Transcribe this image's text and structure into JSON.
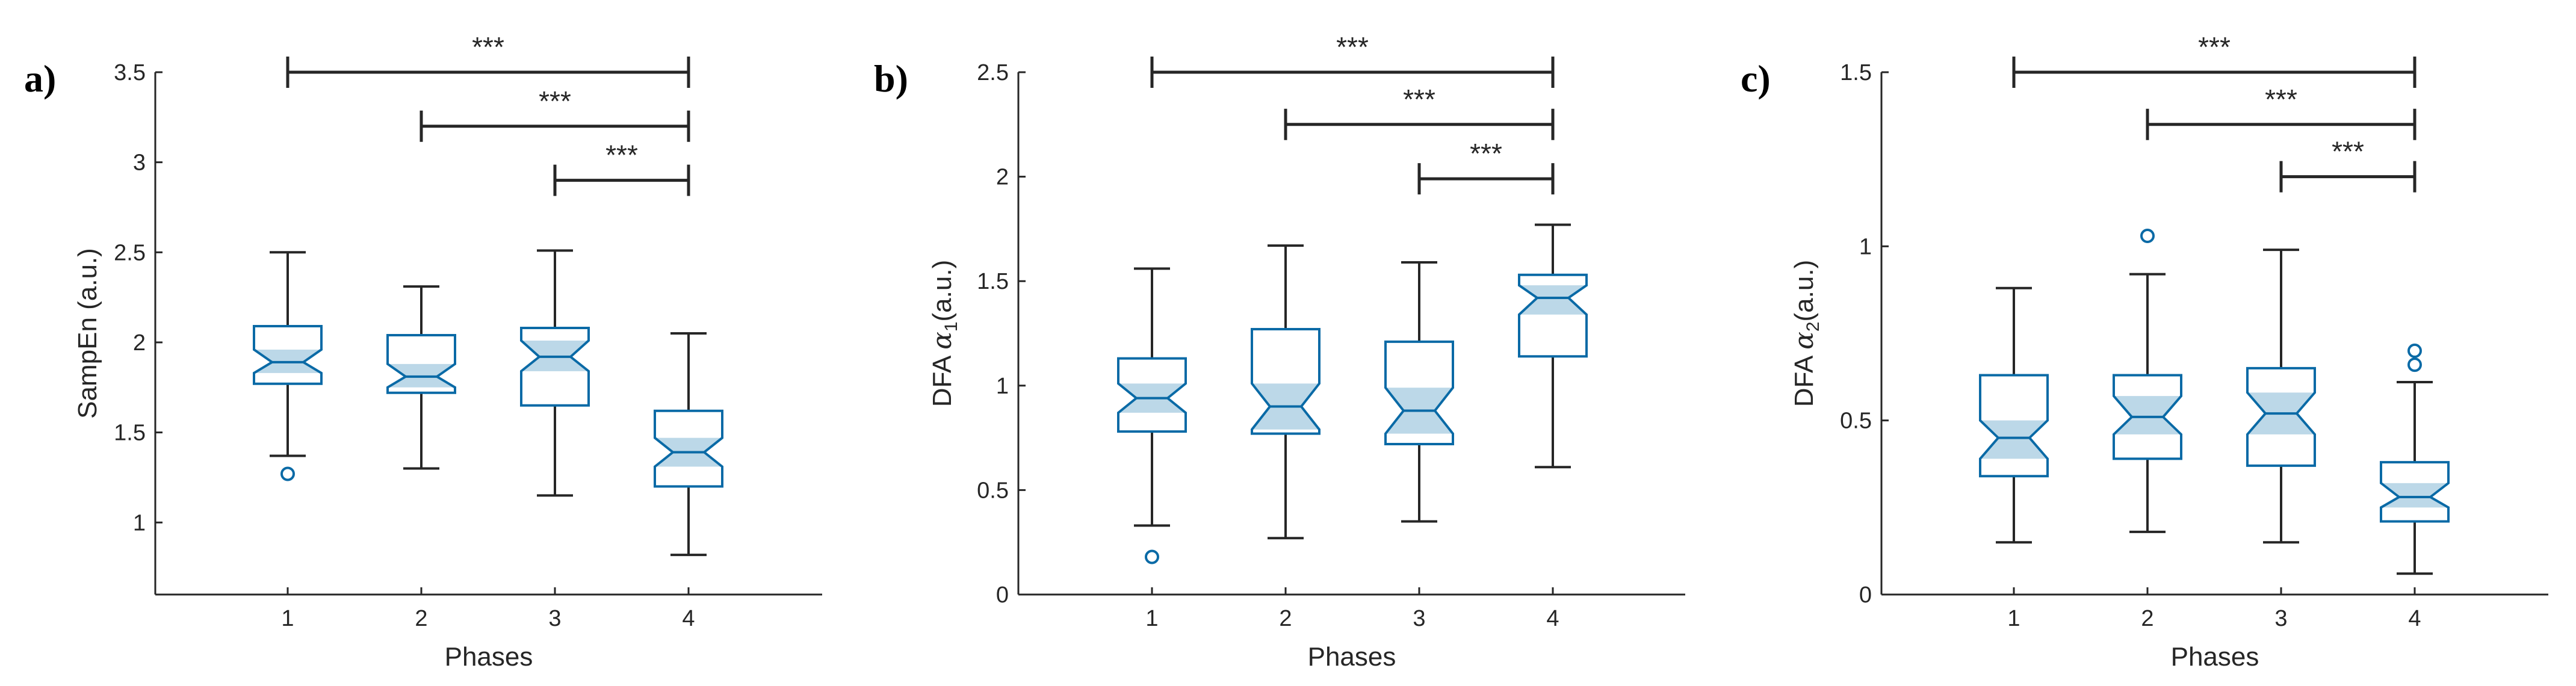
{
  "figure": {
    "background": "#ffffff",
    "box_color": "#0a6aa6",
    "notch_color": "#bcd8e8",
    "line_color": "#262626"
  },
  "chart_data": [
    {
      "type": "boxplot",
      "panel_label": "a)",
      "xlabel": "Phases",
      "ylabel": "SampEn (a.u.)",
      "categories": [
        "1",
        "2",
        "3",
        "4"
      ],
      "ylim": [
        0.6,
        3.5
      ],
      "yticks": [
        1,
        1.5,
        2,
        2.5,
        3,
        3.5
      ],
      "ytick_labels": [
        "1",
        "1.5",
        "2",
        "2.5",
        "3",
        "3.5"
      ],
      "boxes": [
        {
          "whisker_low": 1.37,
          "q1": 1.77,
          "median": 1.89,
          "q3": 2.09,
          "whisker_high": 2.5,
          "notch_low": 1.83,
          "notch_high": 1.96,
          "outliers": [
            1.27
          ]
        },
        {
          "whisker_low": 1.3,
          "q1": 1.72,
          "median": 1.81,
          "q3": 2.04,
          "whisker_high": 2.31,
          "notch_low": 1.75,
          "notch_high": 1.88,
          "outliers": []
        },
        {
          "whisker_low": 1.15,
          "q1": 1.65,
          "median": 1.92,
          "q3": 2.08,
          "whisker_high": 2.51,
          "notch_low": 1.84,
          "notch_high": 2.01,
          "outliers": []
        },
        {
          "whisker_low": 0.82,
          "q1": 1.2,
          "median": 1.39,
          "q3": 1.62,
          "whisker_high": 2.05,
          "notch_low": 1.31,
          "notch_high": 1.47,
          "outliers": []
        }
      ],
      "significance": [
        {
          "from": "1",
          "to": "4",
          "label": "***",
          "y": 3.5
        },
        {
          "from": "2",
          "to": "4",
          "label": "***",
          "y": 3.2
        },
        {
          "from": "3",
          "to": "4",
          "label": "***",
          "y": 2.9
        }
      ]
    },
    {
      "type": "boxplot",
      "panel_label": "b)",
      "xlabel": "Phases",
      "ylabel": "DFA α1(a.u.)",
      "ylabel_main": "DFA ",
      "ylabel_symbol": "α",
      "ylabel_sub": "1",
      "ylabel_unit": "(a.u.)",
      "categories": [
        "1",
        "2",
        "3",
        "4"
      ],
      "ylim": [
        0,
        2.5
      ],
      "yticks": [
        0,
        0.5,
        1,
        1.5,
        2,
        2.5
      ],
      "ytick_labels": [
        "0",
        "0.5",
        "1",
        "1.5",
        "2",
        "2.5"
      ],
      "boxes": [
        {
          "whisker_low": 0.33,
          "q1": 0.78,
          "median": 0.94,
          "q3": 1.13,
          "whisker_high": 1.56,
          "notch_low": 0.87,
          "notch_high": 1.01,
          "outliers": [
            0.18
          ]
        },
        {
          "whisker_low": 0.27,
          "q1": 0.77,
          "median": 0.9,
          "q3": 1.27,
          "whisker_high": 1.67,
          "notch_low": 0.79,
          "notch_high": 1.01,
          "outliers": []
        },
        {
          "whisker_low": 0.35,
          "q1": 0.72,
          "median": 0.88,
          "q3": 1.21,
          "whisker_high": 1.59,
          "notch_low": 0.77,
          "notch_high": 0.99,
          "outliers": []
        },
        {
          "whisker_low": 0.61,
          "q1": 1.14,
          "median": 1.42,
          "q3": 1.53,
          "whisker_high": 1.77,
          "notch_low": 1.34,
          "notch_high": 1.48,
          "outliers": []
        }
      ],
      "significance": [
        {
          "from": "1",
          "to": "4",
          "label": "***",
          "y": 2.5
        },
        {
          "from": "2",
          "to": "4",
          "label": "***",
          "y": 2.25
        },
        {
          "from": "3",
          "to": "4",
          "label": "***",
          "y": 1.99
        }
      ]
    },
    {
      "type": "boxplot",
      "panel_label": "c)",
      "xlabel": "Phases",
      "ylabel": "DFA α2(a.u.)",
      "ylabel_main": "DFA ",
      "ylabel_symbol": "α",
      "ylabel_sub": "2",
      "ylabel_unit": "(a.u.)",
      "categories": [
        "1",
        "2",
        "3",
        "4"
      ],
      "ylim": [
        0,
        1.5
      ],
      "yticks": [
        0,
        0.5,
        1,
        1.5
      ],
      "ytick_labels": [
        "0",
        "0.5",
        "1",
        "1.5"
      ],
      "boxes": [
        {
          "whisker_low": 0.15,
          "q1": 0.34,
          "median": 0.45,
          "q3": 0.63,
          "whisker_high": 0.88,
          "notch_low": 0.39,
          "notch_high": 0.5,
          "outliers": []
        },
        {
          "whisker_low": 0.18,
          "q1": 0.39,
          "median": 0.51,
          "q3": 0.63,
          "whisker_high": 0.92,
          "notch_low": 0.46,
          "notch_high": 0.57,
          "outliers": [
            1.03
          ]
        },
        {
          "whisker_low": 0.15,
          "q1": 0.37,
          "median": 0.52,
          "q3": 0.65,
          "whisker_high": 0.99,
          "notch_low": 0.46,
          "notch_high": 0.58,
          "outliers": []
        },
        {
          "whisker_low": 0.06,
          "q1": 0.21,
          "median": 0.28,
          "q3": 0.38,
          "whisker_high": 0.61,
          "notch_low": 0.25,
          "notch_high": 0.32,
          "outliers": [
            0.66,
            0.7
          ]
        }
      ],
      "significance": [
        {
          "from": "1",
          "to": "4",
          "label": "***",
          "y": 1.5
        },
        {
          "from": "2",
          "to": "4",
          "label": "***",
          "y": 1.35
        },
        {
          "from": "3",
          "to": "4",
          "label": "***",
          "y": 1.2
        }
      ]
    }
  ]
}
